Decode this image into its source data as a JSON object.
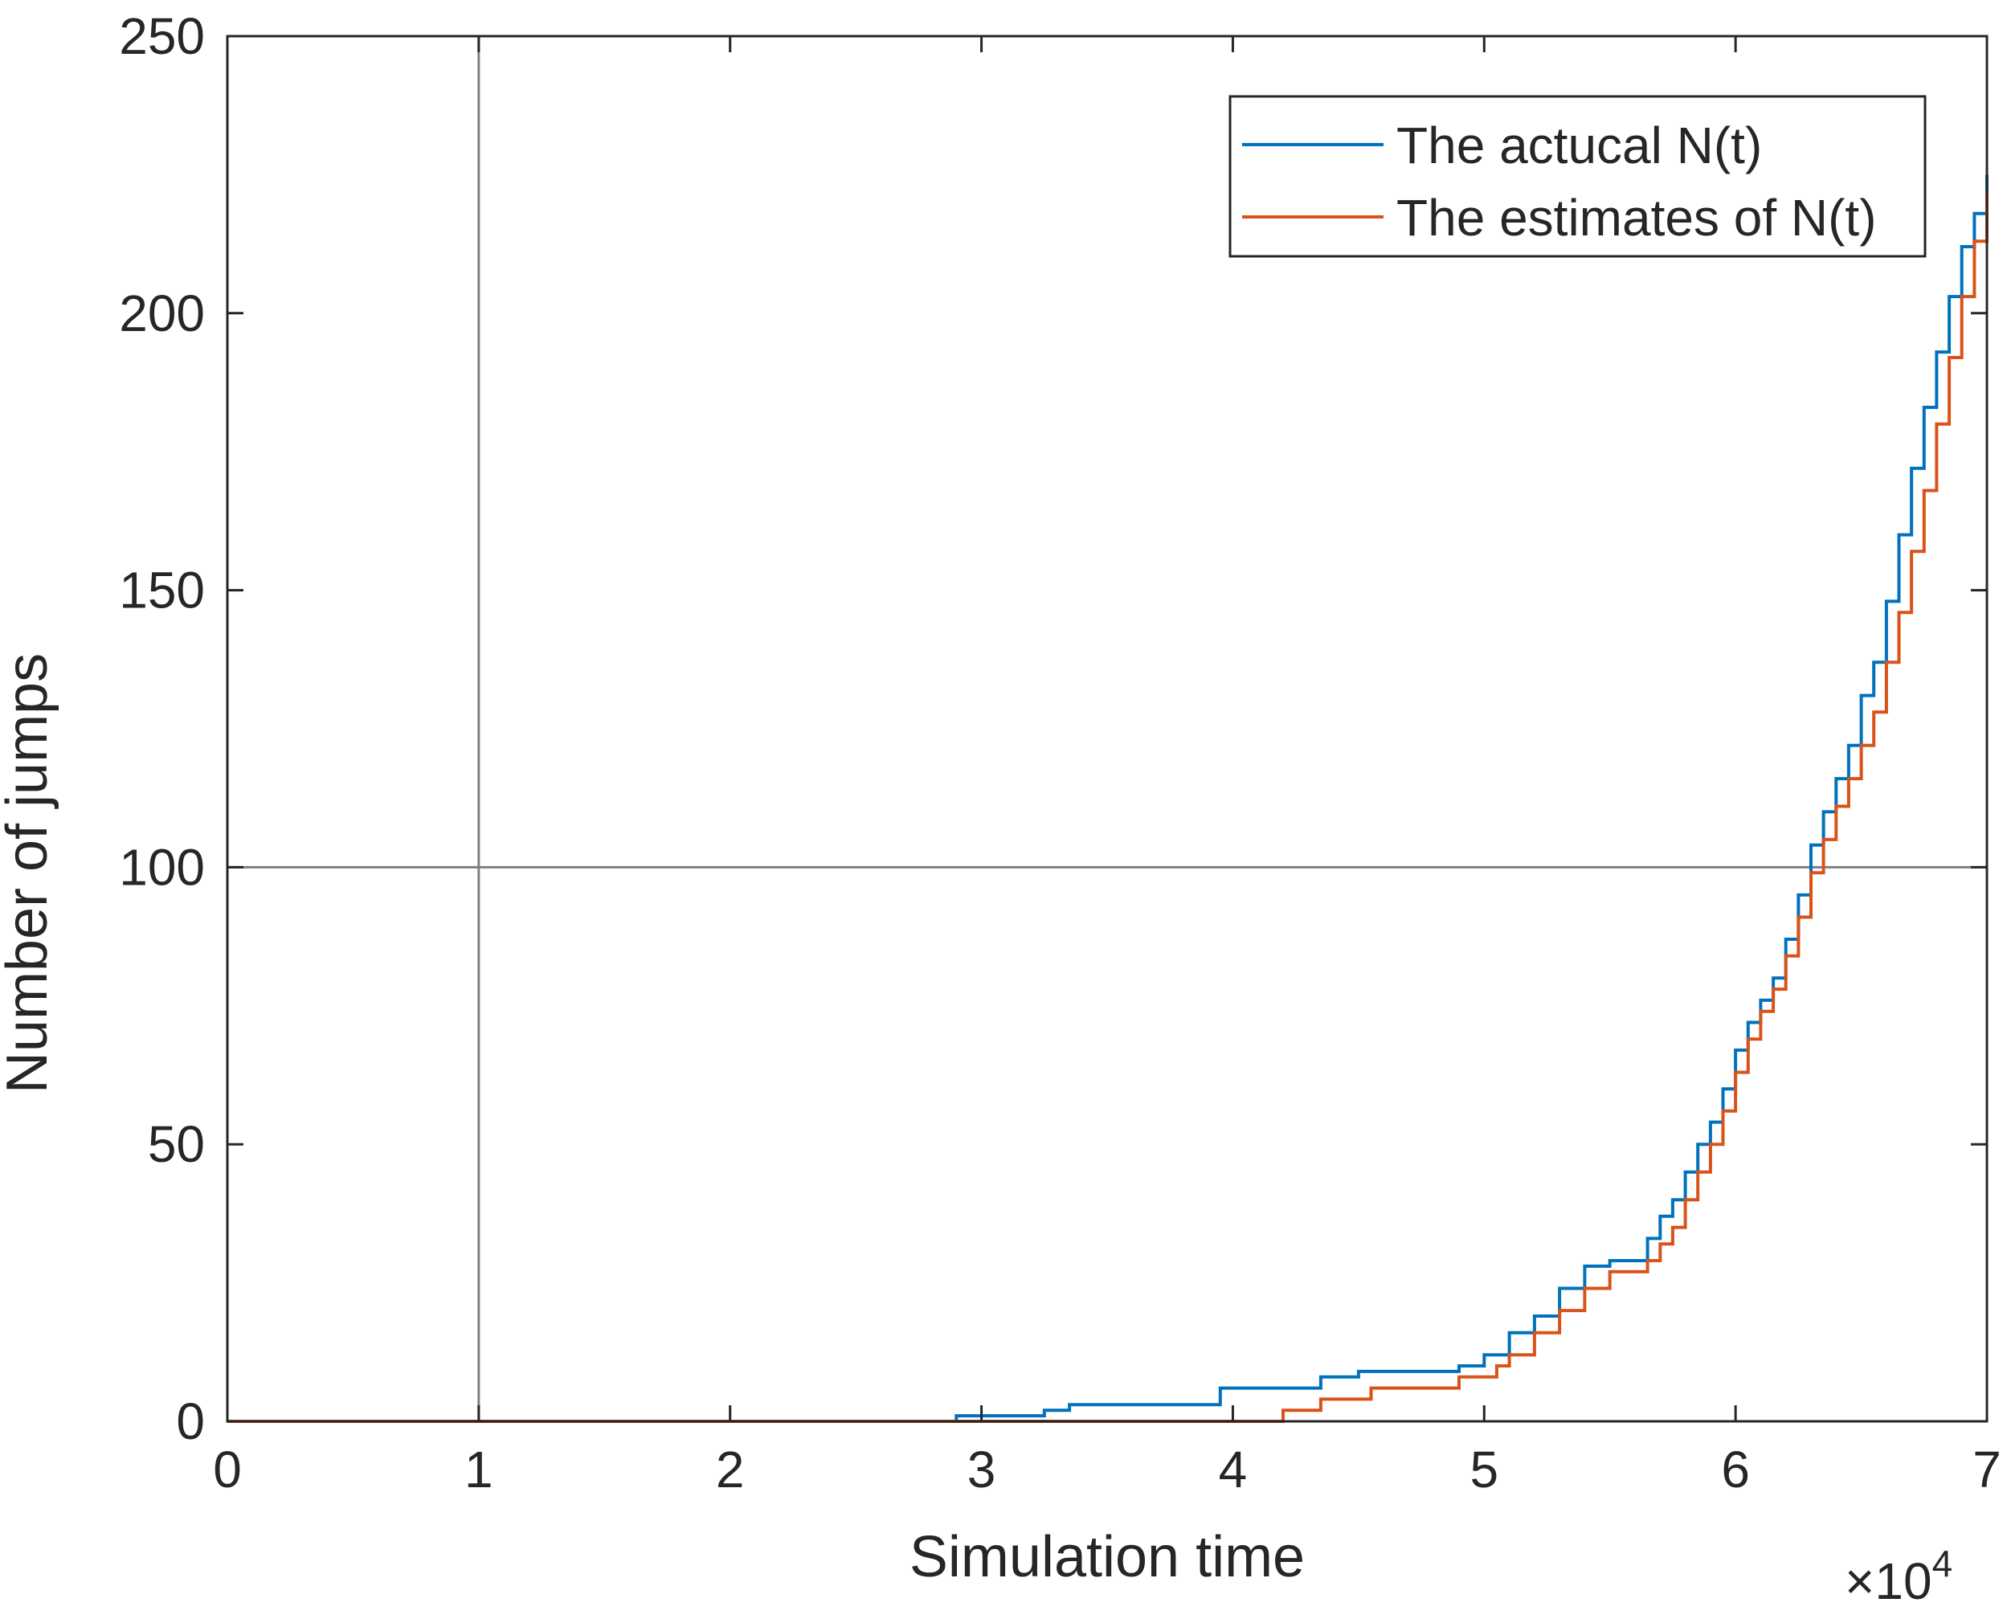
{
  "chart_data": {
    "type": "line",
    "title": "",
    "xlabel": "Simulation time",
    "ylabel": "Number of jumps",
    "x_exponent_label": "×10",
    "x_exponent": "4",
    "xlim": [
      0,
      70000
    ],
    "ylim": [
      0,
      250
    ],
    "x_ticks": [
      0,
      10000,
      20000,
      30000,
      40000,
      50000,
      60000,
      70000
    ],
    "x_tick_labels": [
      "0",
      "1",
      "2",
      "3",
      "4",
      "5",
      "6",
      "7"
    ],
    "y_ticks": [
      0,
      50,
      100,
      150,
      200,
      250
    ],
    "y_tick_labels": [
      "0",
      "50",
      "100",
      "150",
      "200",
      "250"
    ],
    "grid": false,
    "reference_lines": {
      "vertical_x": 10000,
      "horizontal_y": 100
    },
    "legend_position": "top-right",
    "series": [
      {
        "name": "The actucal N(t)",
        "color": "#0072BD",
        "style": "step",
        "x": [
          0,
          29000,
          32500,
          33500,
          39500,
          43500,
          45000,
          49000,
          50000,
          51000,
          52000,
          53000,
          54000,
          55000,
          56500,
          57000,
          57500,
          58000,
          58500,
          59000,
          59500,
          60000,
          60500,
          61000,
          61500,
          62000,
          62500,
          63000,
          63500,
          64000,
          64500,
          65000,
          65500,
          66000,
          66500,
          67000,
          67500,
          68000,
          68500,
          69000,
          69500,
          70000
        ],
        "y": [
          0,
          1,
          2,
          3,
          6,
          8,
          9,
          10,
          12,
          16,
          19,
          24,
          28,
          29,
          33,
          37,
          40,
          45,
          50,
          54,
          60,
          67,
          72,
          76,
          80,
          87,
          95,
          104,
          110,
          116,
          122,
          131,
          137,
          148,
          160,
          172,
          183,
          193,
          203,
          212,
          218,
          225
        ]
      },
      {
        "name": "The estimates of N(t)",
        "color": "#D95319",
        "style": "step",
        "x": [
          0,
          42000,
          43500,
          45500,
          49000,
          50500,
          51000,
          52000,
          53000,
          54000,
          55000,
          56500,
          57000,
          57500,
          58000,
          58500,
          59000,
          59500,
          60000,
          60500,
          61000,
          61500,
          62000,
          62500,
          63000,
          63500,
          64000,
          64500,
          65000,
          65500,
          66000,
          66500,
          67000,
          67500,
          68000,
          68500,
          69000,
          69500,
          70000
        ],
        "y": [
          0,
          2,
          4,
          6,
          8,
          10,
          12,
          16,
          20,
          24,
          27,
          29,
          32,
          35,
          40,
          45,
          50,
          56,
          63,
          69,
          74,
          78,
          84,
          91,
          99,
          105,
          111,
          116,
          122,
          128,
          137,
          146,
          157,
          168,
          180,
          192,
          203,
          213,
          222
        ]
      }
    ]
  }
}
